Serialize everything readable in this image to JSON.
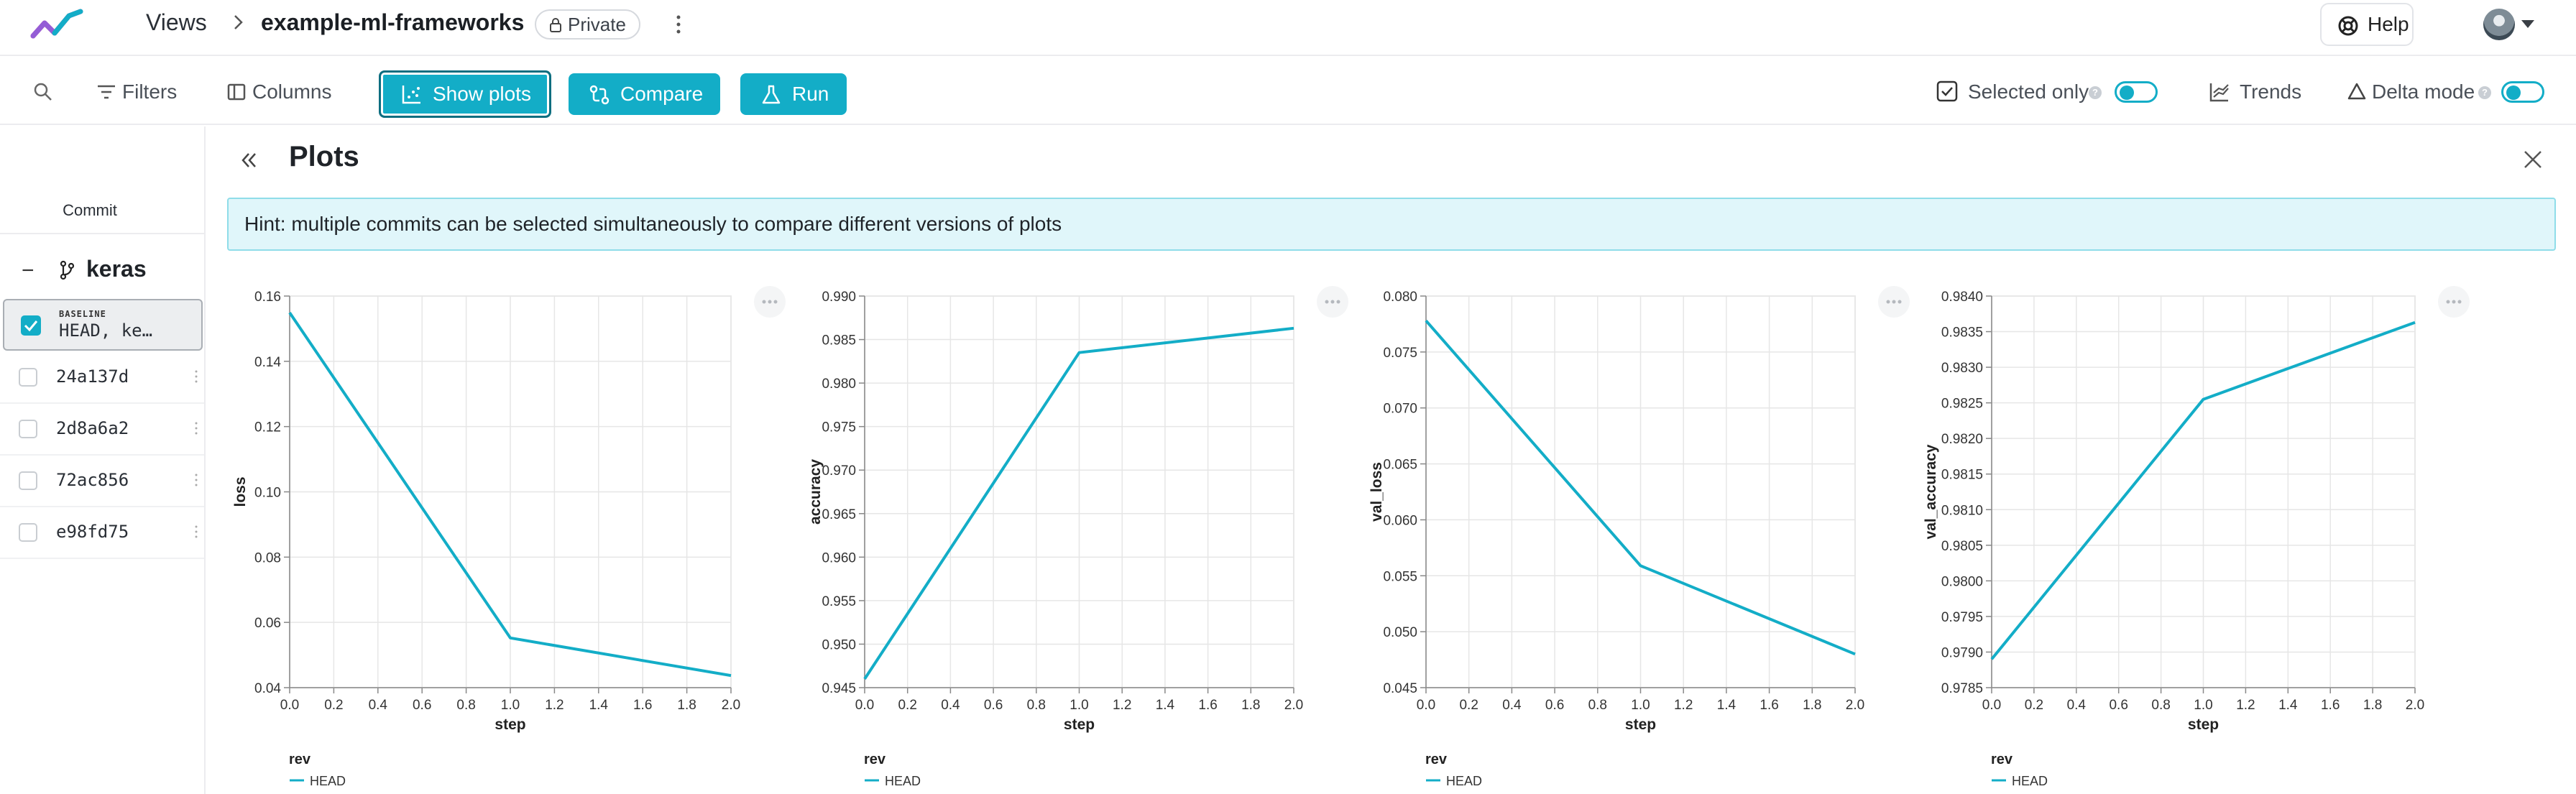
{
  "header": {
    "views_label": "Views",
    "project_name": "example-ml-frameworks",
    "visibility_label": "Private",
    "help_label": "Help"
  },
  "toolbar": {
    "filters_label": "Filters",
    "columns_label": "Columns",
    "show_plots_label": "Show plots",
    "compare_label": "Compare",
    "run_label": "Run",
    "selected_only_label": "Selected only",
    "trends_label": "Trends",
    "delta_mode_label": "Delta mode"
  },
  "commits": {
    "header": "Commit",
    "branch": "keras",
    "baseline_tag": "BASELINE",
    "baseline_label": "HEAD, ke…",
    "items": [
      "24a137d",
      "2d8a6a2",
      "72ac856",
      "e98fd75"
    ]
  },
  "plots": {
    "title": "Plots",
    "hint": "Hint: multiple commits can be selected simultaneously to compare different versions of plots"
  },
  "colors": {
    "accent": "#13adc7",
    "accent_dark": "#0d6e80",
    "hint_bg": "#e0f6fa"
  },
  "chart_data": [
    {
      "type": "line",
      "xlabel": "step",
      "ylabel": "loss",
      "x": [
        0,
        1,
        2
      ],
      "series": [
        {
          "name": "HEAD",
          "values": [
            0.1645,
            0.0565,
            0.044
          ]
        }
      ],
      "xlim": [
        0,
        2.0
      ],
      "ylim": [
        0.04,
        0.17
      ],
      "xticks": [
        "0.0",
        "0.2",
        "0.4",
        "0.6",
        "0.8",
        "1.0",
        "1.2",
        "1.4",
        "1.6",
        "1.8",
        "2.0"
      ],
      "yticks": [
        "0.04",
        "0.06",
        "0.08",
        "0.10",
        "0.12",
        "0.14",
        "0.16"
      ],
      "legend_title": "rev",
      "grid": true
    },
    {
      "type": "line",
      "xlabel": "step",
      "ylabel": "accuracy",
      "x": [
        0,
        1,
        2
      ],
      "series": [
        {
          "name": "HEAD",
          "values": [
            0.946,
            0.9835,
            0.9863
          ]
        }
      ],
      "xlim": [
        0,
        2.0
      ],
      "ylim": [
        0.945,
        0.99
      ],
      "xticks": [
        "0.0",
        "0.2",
        "0.4",
        "0.6",
        "0.8",
        "1.0",
        "1.2",
        "1.4",
        "1.6",
        "1.8",
        "2.0"
      ],
      "yticks": [
        "0.945",
        "0.950",
        "0.955",
        "0.960",
        "0.965",
        "0.970",
        "0.975",
        "0.980",
        "0.985",
        "0.990"
      ],
      "legend_title": "rev",
      "grid": true
    },
    {
      "type": "line",
      "xlabel": "step",
      "ylabel": "val_loss",
      "x": [
        0,
        1,
        2
      ],
      "series": [
        {
          "name": "HEAD",
          "values": [
            0.0778,
            0.0559,
            0.048
          ]
        }
      ],
      "xlim": [
        0,
        2.0
      ],
      "ylim": [
        0.045,
        0.08
      ],
      "xticks": [
        "0.0",
        "0.2",
        "0.4",
        "0.6",
        "0.8",
        "1.0",
        "1.2",
        "1.4",
        "1.6",
        "1.8",
        "2.0"
      ],
      "yticks": [
        "0.045",
        "0.050",
        "0.055",
        "0.060",
        "0.065",
        "0.070",
        "0.075",
        "0.080"
      ],
      "legend_title": "rev",
      "grid": true
    },
    {
      "type": "line",
      "xlabel": "step",
      "ylabel": "val_accuracy",
      "x": [
        0,
        1,
        2
      ],
      "series": [
        {
          "name": "HEAD",
          "values": [
            0.9789,
            0.98255,
            0.98363
          ]
        }
      ],
      "xlim": [
        0,
        2.0
      ],
      "ylim": [
        0.9785,
        0.984
      ],
      "xticks": [
        "0.0",
        "0.2",
        "0.4",
        "0.6",
        "0.8",
        "1.0",
        "1.2",
        "1.4",
        "1.6",
        "1.8",
        "2.0"
      ],
      "yticks": [
        "0.9785",
        "0.9790",
        "0.9795",
        "0.9800",
        "0.9805",
        "0.9810",
        "0.9815",
        "0.9820",
        "0.9825",
        "0.9830",
        "0.9835",
        "0.9840"
      ],
      "legend_title": "rev",
      "grid": true
    }
  ]
}
